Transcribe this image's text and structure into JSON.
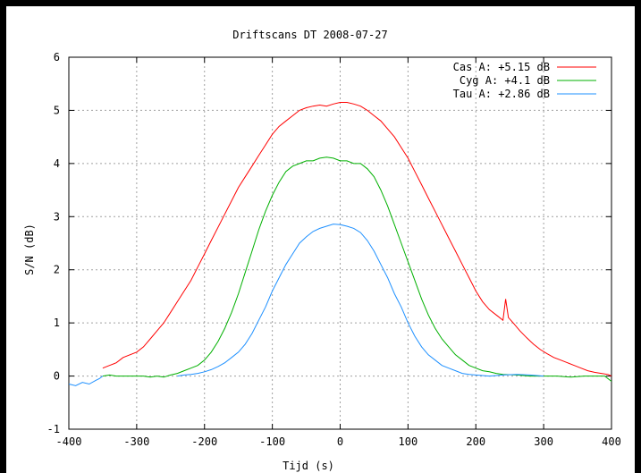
{
  "chart_data": {
    "type": "line",
    "title": "Driftscans DT 2008-07-27",
    "xlabel": "Tijd (s)",
    "ylabel": "S/N (dB)",
    "xlim": [
      -400,
      400
    ],
    "ylim": [
      -1,
      6
    ],
    "xticks": [
      -400,
      -300,
      -200,
      -100,
      0,
      100,
      200,
      300,
      400
    ],
    "yticks": [
      -1,
      0,
      1,
      2,
      3,
      4,
      5,
      6
    ],
    "grid": true,
    "legend_position": "top-right",
    "series": [
      {
        "name": "Cas A: +5.15 dB",
        "color": "#ff0000",
        "points": [
          [
            -350,
            0.15
          ],
          [
            -340,
            0.2
          ],
          [
            -330,
            0.25
          ],
          [
            -320,
            0.35
          ],
          [
            -300,
            0.45
          ],
          [
            -290,
            0.55
          ],
          [
            -280,
            0.7
          ],
          [
            -270,
            0.85
          ],
          [
            -260,
            1.0
          ],
          [
            -250,
            1.2
          ],
          [
            -240,
            1.4
          ],
          [
            -230,
            1.6
          ],
          [
            -220,
            1.8
          ],
          [
            -210,
            2.05
          ],
          [
            -200,
            2.3
          ],
          [
            -190,
            2.55
          ],
          [
            -180,
            2.8
          ],
          [
            -170,
            3.05
          ],
          [
            -160,
            3.3
          ],
          [
            -150,
            3.55
          ],
          [
            -140,
            3.75
          ],
          [
            -130,
            3.95
          ],
          [
            -120,
            4.15
          ],
          [
            -110,
            4.35
          ],
          [
            -100,
            4.55
          ],
          [
            -90,
            4.7
          ],
          [
            -80,
            4.8
          ],
          [
            -70,
            4.9
          ],
          [
            -60,
            5.0
          ],
          [
            -50,
            5.05
          ],
          [
            -40,
            5.08
          ],
          [
            -30,
            5.1
          ],
          [
            -20,
            5.08
          ],
          [
            -10,
            5.12
          ],
          [
            0,
            5.15
          ],
          [
            10,
            5.15
          ],
          [
            20,
            5.12
          ],
          [
            30,
            5.08
          ],
          [
            40,
            5.0
          ],
          [
            50,
            4.9
          ],
          [
            60,
            4.8
          ],
          [
            70,
            4.65
          ],
          [
            80,
            4.5
          ],
          [
            90,
            4.3
          ],
          [
            100,
            4.1
          ],
          [
            110,
            3.85
          ],
          [
            120,
            3.6
          ],
          [
            130,
            3.35
          ],
          [
            140,
            3.1
          ],
          [
            150,
            2.85
          ],
          [
            160,
            2.6
          ],
          [
            170,
            2.35
          ],
          [
            180,
            2.1
          ],
          [
            190,
            1.85
          ],
          [
            200,
            1.6
          ],
          [
            210,
            1.4
          ],
          [
            220,
            1.25
          ],
          [
            230,
            1.15
          ],
          [
            240,
            1.05
          ],
          [
            244,
            1.45
          ],
          [
            248,
            1.1
          ],
          [
            255,
            1.0
          ],
          [
            265,
            0.85
          ],
          [
            275,
            0.72
          ],
          [
            285,
            0.6
          ],
          [
            295,
            0.5
          ],
          [
            305,
            0.42
          ],
          [
            315,
            0.35
          ],
          [
            325,
            0.3
          ],
          [
            335,
            0.25
          ],
          [
            345,
            0.2
          ],
          [
            355,
            0.15
          ],
          [
            365,
            0.1
          ],
          [
            375,
            0.07
          ],
          [
            385,
            0.05
          ],
          [
            395,
            0.03
          ],
          [
            400,
            0.0
          ]
        ]
      },
      {
        "name": "Cyg A: +4.1 dB",
        "color": "#00b000",
        "points": [
          [
            -350,
            0.0
          ],
          [
            -340,
            0.02
          ],
          [
            -330,
            0.0
          ],
          [
            -320,
            0.0
          ],
          [
            -300,
            0.0
          ],
          [
            -290,
            0.0
          ],
          [
            -280,
            -0.02
          ],
          [
            -270,
            0.0
          ],
          [
            -260,
            -0.02
          ],
          [
            -250,
            0.02
          ],
          [
            -240,
            0.05
          ],
          [
            -230,
            0.1
          ],
          [
            -220,
            0.15
          ],
          [
            -210,
            0.2
          ],
          [
            -200,
            0.3
          ],
          [
            -190,
            0.45
          ],
          [
            -180,
            0.65
          ],
          [
            -170,
            0.9
          ],
          [
            -160,
            1.2
          ],
          [
            -150,
            1.55
          ],
          [
            -140,
            1.95
          ],
          [
            -130,
            2.35
          ],
          [
            -120,
            2.75
          ],
          [
            -110,
            3.1
          ],
          [
            -100,
            3.4
          ],
          [
            -90,
            3.65
          ],
          [
            -80,
            3.85
          ],
          [
            -70,
            3.95
          ],
          [
            -60,
            4.0
          ],
          [
            -50,
            4.05
          ],
          [
            -40,
            4.05
          ],
          [
            -30,
            4.1
          ],
          [
            -20,
            4.12
          ],
          [
            -10,
            4.1
          ],
          [
            0,
            4.05
          ],
          [
            10,
            4.05
          ],
          [
            20,
            4.0
          ],
          [
            30,
            4.0
          ],
          [
            40,
            3.9
          ],
          [
            50,
            3.75
          ],
          [
            60,
            3.5
          ],
          [
            70,
            3.2
          ],
          [
            80,
            2.85
          ],
          [
            90,
            2.5
          ],
          [
            100,
            2.15
          ],
          [
            110,
            1.8
          ],
          [
            120,
            1.45
          ],
          [
            130,
            1.15
          ],
          [
            140,
            0.9
          ],
          [
            150,
            0.7
          ],
          [
            160,
            0.55
          ],
          [
            170,
            0.4
          ],
          [
            180,
            0.3
          ],
          [
            190,
            0.2
          ],
          [
            200,
            0.15
          ],
          [
            210,
            0.1
          ],
          [
            220,
            0.08
          ],
          [
            230,
            0.05
          ],
          [
            240,
            0.03
          ],
          [
            260,
            0.02
          ],
          [
            280,
            0.0
          ],
          [
            300,
            0.0
          ],
          [
            320,
            0.0
          ],
          [
            340,
            -0.02
          ],
          [
            360,
            0.0
          ],
          [
            380,
            0.0
          ],
          [
            390,
            0.0
          ],
          [
            400,
            -0.1
          ]
        ]
      },
      {
        "name": "Tau A: +2.86 dB",
        "color": "#1e90ff",
        "points": [
          [
            -240,
            0.0
          ],
          [
            -230,
            0.02
          ],
          [
            -220,
            0.03
          ],
          [
            -210,
            0.05
          ],
          [
            -200,
            0.08
          ],
          [
            -190,
            0.12
          ],
          [
            -180,
            0.18
          ],
          [
            -170,
            0.25
          ],
          [
            -160,
            0.35
          ],
          [
            -150,
            0.45
          ],
          [
            -140,
            0.6
          ],
          [
            -130,
            0.8
          ],
          [
            -120,
            1.05
          ],
          [
            -110,
            1.3
          ],
          [
            -100,
            1.6
          ],
          [
            -90,
            1.85
          ],
          [
            -80,
            2.1
          ],
          [
            -70,
            2.3
          ],
          [
            -60,
            2.5
          ],
          [
            -50,
            2.62
          ],
          [
            -40,
            2.72
          ],
          [
            -30,
            2.78
          ],
          [
            -20,
            2.82
          ],
          [
            -10,
            2.86
          ],
          [
            0,
            2.85
          ],
          [
            10,
            2.82
          ],
          [
            20,
            2.78
          ],
          [
            30,
            2.7
          ],
          [
            40,
            2.55
          ],
          [
            50,
            2.35
          ],
          [
            60,
            2.1
          ],
          [
            70,
            1.85
          ],
          [
            80,
            1.55
          ],
          [
            90,
            1.3
          ],
          [
            100,
            1.0
          ],
          [
            110,
            0.75
          ],
          [
            120,
            0.55
          ],
          [
            130,
            0.4
          ],
          [
            140,
            0.3
          ],
          [
            150,
            0.2
          ],
          [
            160,
            0.15
          ],
          [
            170,
            0.1
          ],
          [
            180,
            0.05
          ],
          [
            190,
            0.03
          ],
          [
            200,
            0.02
          ],
          [
            220,
            0.0
          ],
          [
            240,
            0.02
          ],
          [
            260,
            0.03
          ],
          [
            280,
            0.02
          ],
          [
            300,
            0.0
          ]
        ]
      },
      {
        "name": "",
        "color": "#1e90ff",
        "points": [
          [
            -400,
            -0.15
          ],
          [
            -390,
            -0.18
          ],
          [
            -380,
            -0.12
          ],
          [
            -370,
            -0.15
          ],
          [
            -360,
            -0.08
          ],
          [
            -355,
            -0.05
          ],
          [
            -350,
            0.0
          ]
        ]
      }
    ]
  }
}
